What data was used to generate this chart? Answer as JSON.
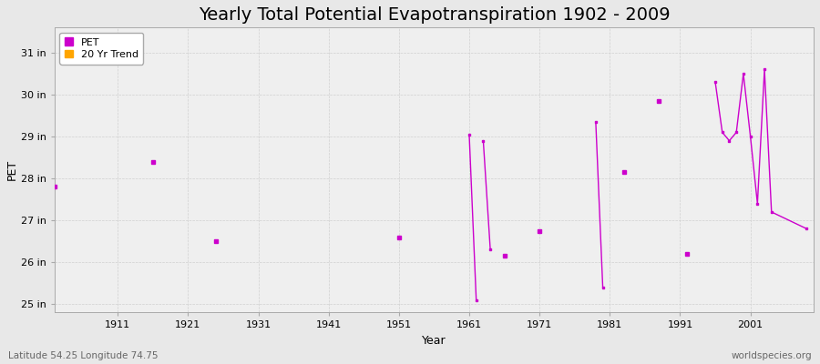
{
  "title": "Yearly Total Potential Evapotranspiration 1902 - 2009",
  "xlabel": "Year",
  "ylabel": "PET",
  "xlim": [
    1902,
    2010
  ],
  "ylim": [
    24.8,
    31.6
  ],
  "yticks": [
    25,
    26,
    27,
    28,
    29,
    30,
    31
  ],
  "ytick_labels": [
    "25 in",
    "26 in",
    "27 in",
    "28 in",
    "29 in",
    "30 in",
    "31 in"
  ],
  "xticks": [
    1911,
    1921,
    1931,
    1941,
    1951,
    1961,
    1971,
    1981,
    1991,
    2001
  ],
  "pet_color": "#cc00cc",
  "trend_color": "#ffa500",
  "fig_bg_color": "#e8e8e8",
  "plot_bg_color": "#efefef",
  "grid_color": "#d0d0d0",
  "isolated_points": [
    [
      1902,
      27.8
    ],
    [
      1916,
      28.4
    ],
    [
      1925,
      26.5
    ],
    [
      1951,
      26.6
    ],
    [
      1966,
      26.15
    ],
    [
      1971,
      26.75
    ],
    [
      1983,
      28.15
    ],
    [
      1988,
      29.85
    ],
    [
      1992,
      26.2
    ]
  ],
  "connected_segments": [
    [
      [
        1961,
        29.05
      ],
      [
        1962,
        25.1
      ]
    ],
    [
      [
        1963,
        28.9
      ],
      [
        1964,
        26.3
      ]
    ],
    [
      [
        1979,
        29.35
      ],
      [
        1980,
        25.4
      ]
    ],
    [
      [
        1996,
        30.3
      ],
      [
        1997,
        29.1
      ],
      [
        1998,
        28.9
      ],
      [
        1999,
        29.1
      ],
      [
        2000,
        30.5
      ],
      [
        2001,
        29.0
      ],
      [
        2002,
        27.4
      ],
      [
        2003,
        30.6
      ],
      [
        2004,
        27.2
      ],
      [
        2009,
        26.8
      ]
    ]
  ],
  "footer_left": "Latitude 54.25 Longitude 74.75",
  "footer_right": "worldspecies.org",
  "title_fontsize": 14,
  "axis_fontsize": 9,
  "tick_fontsize": 8,
  "footer_fontsize": 7.5
}
